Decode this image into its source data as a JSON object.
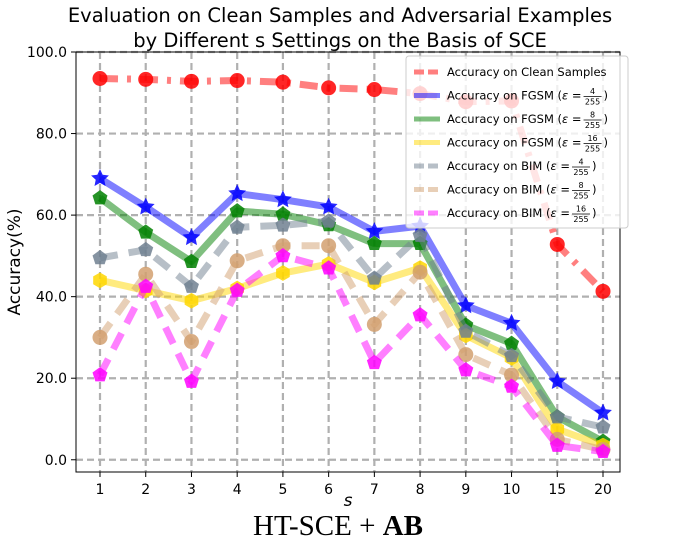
{
  "chart_data": {
    "type": "line",
    "title_lines": [
      "Evaluation on Clean Samples and Adversarial Examples",
      "by Different s Settings on the Basis of SCE"
    ],
    "xlabel": "s",
    "ylabel": "Accuracy(%)",
    "categories": [
      "1",
      "2",
      "3",
      "4",
      "5",
      "6",
      "7",
      "8",
      "9",
      "10",
      "15",
      "20"
    ],
    "y_ticks": [
      "0.0",
      "20.0",
      "40.0",
      "60.0",
      "80.0",
      "100.0"
    ],
    "ylim": [
      -3,
      100
    ],
    "grid": true,
    "legend_position": "top-right",
    "series": [
      {
        "name": "Accuracy on Clean Samples",
        "legend_label": "Accuracy on Clean Samples",
        "color": "#ff0000",
        "style": "dashdot",
        "marker": "circle",
        "values": [
          93.5,
          93.3,
          92.8,
          93.0,
          92.6,
          91.2,
          90.8,
          89.8,
          87.8,
          88.0,
          52.8,
          41.3
        ]
      },
      {
        "name": "Accuracy on FGSM (ε=4/255)",
        "legend_label": "Accuracy on FGSM (ε = 4/255)",
        "color": "#0000ff",
        "style": "solid",
        "marker": "star",
        "values": [
          69.0,
          62.0,
          54.5,
          65.3,
          63.8,
          62.0,
          56.0,
          57.3,
          37.8,
          33.5,
          19.2,
          11.5
        ]
      },
      {
        "name": "Accuracy on FGSM (ε=8/255)",
        "legend_label": "Accuracy on FGSM (ε = 8/255)",
        "color": "#008000",
        "style": "solid",
        "marker": "pentagon",
        "values": [
          64.2,
          55.8,
          48.6,
          61.0,
          60.2,
          57.6,
          53.0,
          53.0,
          33.0,
          28.5,
          10.5,
          4.5
        ]
      },
      {
        "name": "Accuracy on FGSM (ε=16/255)",
        "legend_label": "Accuracy on FGSM (ε = 16/255)",
        "color": "#ffd700",
        "style": "solid",
        "marker": "hexagon",
        "values": [
          44.0,
          41.5,
          39.0,
          42.0,
          45.8,
          48.0,
          43.5,
          47.0,
          30.5,
          25.0,
          7.5,
          3.5
        ]
      },
      {
        "name": "Accuracy on BIM (ε=4/255)",
        "legend_label": "Accuracy on BIM (ε = 4/255)",
        "color": "#708090",
        "style": "dashed",
        "marker": "pentagon",
        "values": [
          49.5,
          51.5,
          42.5,
          57.0,
          57.5,
          58.5,
          44.5,
          55.0,
          31.5,
          25.5,
          10.5,
          8.0
        ]
      },
      {
        "name": "Accuracy on BIM (ε=8/255)",
        "legend_label": "Accuracy on BIM (ε = 8/255)",
        "color": "#d2a070",
        "style": "dashed",
        "marker": "circle",
        "values": [
          30.0,
          45.5,
          29.0,
          48.8,
          52.5,
          52.5,
          33.2,
          46.0,
          25.8,
          20.8,
          5.0,
          2.5
        ]
      },
      {
        "name": "Accuracy on BIM (ε=16/255)",
        "legend_label": "Accuracy on BIM (ε = 16/255)",
        "color": "#ff00ff",
        "style": "dashed",
        "marker": "pentagon",
        "values": [
          20.8,
          42.5,
          19.2,
          41.5,
          50.0,
          47.0,
          23.8,
          35.5,
          22.0,
          18.0,
          3.5,
          2.0
        ]
      }
    ]
  },
  "legend": {
    "items": [
      {
        "prefix": "Accuracy on Clean Samples",
        "eps": ""
      },
      {
        "prefix": "Accuracy on FGSM (",
        "eps": "4"
      },
      {
        "prefix": "Accuracy on FGSM (",
        "eps": "8"
      },
      {
        "prefix": "Accuracy on FGSM (",
        "eps": "16"
      },
      {
        "prefix": "Accuracy on BIM (",
        "eps": "4"
      },
      {
        "prefix": "Accuracy on BIM (",
        "eps": "8"
      },
      {
        "prefix": "Accuracy on BIM (",
        "eps": "16"
      }
    ],
    "eps_symbol": "ε = ",
    "denominator": "255",
    "close_paren": ")"
  },
  "caption": {
    "prefix": "HT-SCE + ",
    "bold": "AB"
  }
}
